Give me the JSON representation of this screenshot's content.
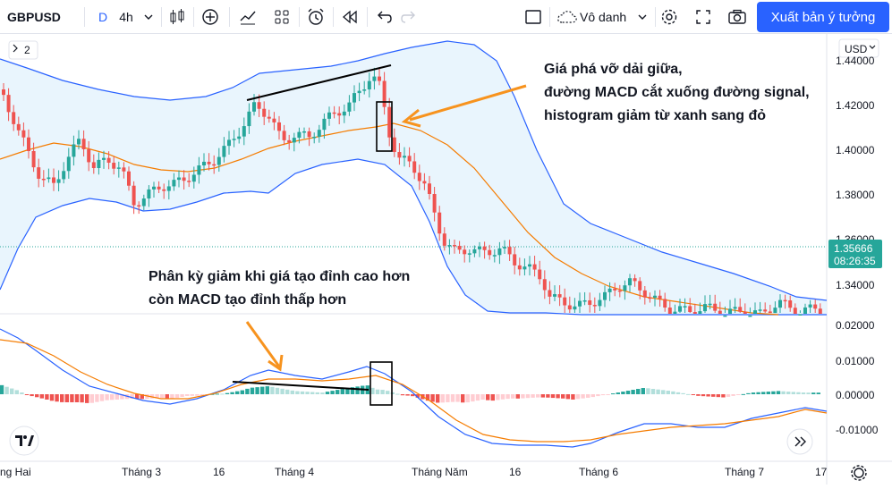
{
  "toolbar": {
    "symbol": "GBPUSD",
    "interval_letter": "D",
    "interval": "4h",
    "layout_name": "Vô danh",
    "publish_label": "Xuất bản ý tưởng"
  },
  "chart": {
    "compare_count": "2",
    "currency": "USD",
    "price_label": "1.35666",
    "countdown": "08:26:35",
    "price_ticks": [
      "1.44000",
      "1.42000",
      "1.40000",
      "1.38000",
      "1.36000",
      "1.34000"
    ],
    "macd_ticks": [
      "0.02000",
      "0.01000",
      "0.00000",
      "-0.01000"
    ],
    "time_labels": [
      "ng Hai",
      "Tháng 3",
      "16",
      "Tháng 4",
      "Tháng Năm",
      "16",
      "Tháng 6",
      "Tháng 7",
      "17"
    ],
    "annotation_top": [
      "Giá phá vỡ dải giữa,",
      "đường MACD cắt xuống đường signal,",
      "histogram giảm từ xanh sang đỏ"
    ],
    "annotation_mid": [
      "Phân kỳ giảm khi giá tạo đỉnh cao hơn",
      "còn MACD tạo đỉnh thấp hơn"
    ],
    "colors": {
      "up": "#26a69a",
      "down": "#ef5350",
      "band": "#2962ff",
      "basis": "#f57c00",
      "band_fill": "#e3f2fd",
      "arrow": "#f7931e",
      "price_tag": "#26a69a"
    }
  }
}
